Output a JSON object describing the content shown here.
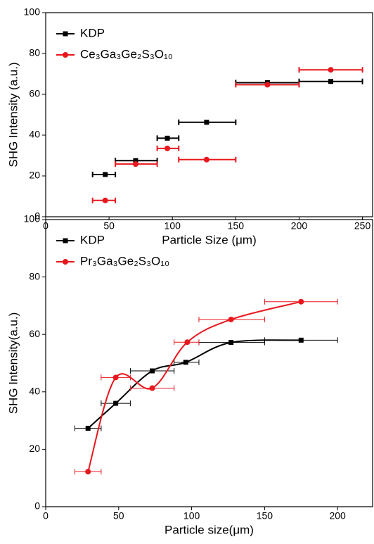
{
  "chart_data": [
    {
      "type": "scatter",
      "xlabel": "Particle Size (μm)",
      "ylabel": "SHG Intensity (a.u.)",
      "xlim": [
        0,
        258
      ],
      "xticks": [
        0,
        50,
        100,
        150,
        200,
        250
      ],
      "ylim": [
        0,
        100
      ],
      "yticks": [
        0,
        20,
        40,
        60,
        80,
        100
      ],
      "lines": false,
      "series": [
        {
          "name": "KDP",
          "color": "#000000",
          "marker": "square",
          "x": [
            47,
            71,
            96,
            127,
            175,
            225
          ],
          "values": [
            20.7,
            27.5,
            38.5,
            46.3,
            65.7,
            66.3
          ],
          "x_min": [
            37,
            55,
            88,
            105,
            150,
            200
          ],
          "x_max": [
            55,
            88,
            105,
            150,
            200,
            250
          ]
        },
        {
          "name": "Ce₃Ga₃Ge₂S₃O₁₀",
          "color": "#e8171d",
          "marker": "circle",
          "x": [
            47,
            71,
            96,
            127,
            175,
            225
          ],
          "values": [
            8,
            25.8,
            33.5,
            28,
            64.7,
            72
          ],
          "x_min": [
            37,
            55,
            88,
            105,
            150,
            200
          ],
          "x_max": [
            55,
            88,
            105,
            150,
            200,
            250
          ]
        }
      ]
    },
    {
      "type": "line",
      "xlabel": "Particle size(μm)",
      "ylabel": "SHG Intensity(a.u.)",
      "xlim": [
        0,
        224
      ],
      "xticks": [
        0,
        50,
        100,
        150,
        200
      ],
      "ylim": [
        0,
        100
      ],
      "yticks": [
        0,
        20,
        40,
        60,
        80,
        100
      ],
      "lines": true,
      "series": [
        {
          "name": "KDP",
          "color": "#000000",
          "marker": "square",
          "x": [
            29,
            48,
            73,
            96,
            127,
            175
          ],
          "values": [
            27.3,
            36,
            47.3,
            50.3,
            57.2,
            58
          ],
          "x_min": [
            20,
            38,
            58,
            88,
            105,
            150
          ],
          "x_max": [
            38,
            58,
            88,
            105,
            150,
            200
          ]
        },
        {
          "name": "Pr₃Ga₃Ge₂S₃O₁₀",
          "color": "#e8171d",
          "marker": "circle",
          "x": [
            29,
            48,
            73,
            97,
            127,
            175
          ],
          "values": [
            12.2,
            45,
            41.3,
            57.3,
            65.2,
            71.4
          ],
          "x_min": [
            20,
            38,
            58,
            88,
            105,
            150
          ],
          "x_max": [
            38,
            58,
            88,
            105,
            150,
            200
          ]
        }
      ]
    }
  ]
}
